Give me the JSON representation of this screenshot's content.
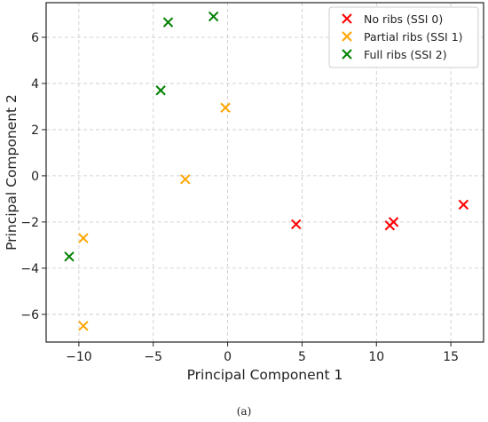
{
  "caption": "(a)",
  "chart_data": {
    "type": "scatter",
    "xlabel": "Principal Component 1",
    "ylabel": "Principal Component 2",
    "xlim": [
      -12.2,
      17.2
    ],
    "ylim": [
      -7.2,
      7.5
    ],
    "xticks": [
      -10,
      -5,
      0,
      5,
      10,
      15
    ],
    "yticks": [
      -6,
      -4,
      -2,
      0,
      2,
      4,
      6
    ],
    "grid": true,
    "legend_position": "top-right",
    "marker": "x",
    "series": [
      {
        "name": "No ribs (SSI 0)",
        "color": "#ff0000",
        "points": [
          [
            4.6,
            -2.1
          ],
          [
            10.9,
            -2.15
          ],
          [
            11.15,
            -2.0
          ],
          [
            15.85,
            -1.25
          ]
        ]
      },
      {
        "name": "Partial ribs (SSI 1)",
        "color": "#ffa500",
        "points": [
          [
            -0.15,
            2.95
          ],
          [
            -2.85,
            -0.15
          ],
          [
            -9.7,
            -2.7
          ],
          [
            -9.7,
            -6.5
          ]
        ]
      },
      {
        "name": "Full ribs (SSI 2)",
        "color": "#008000",
        "points": [
          [
            -0.95,
            6.9
          ],
          [
            -4.0,
            6.65
          ],
          [
            -4.5,
            3.7
          ],
          [
            -10.65,
            -3.5
          ]
        ]
      }
    ]
  }
}
